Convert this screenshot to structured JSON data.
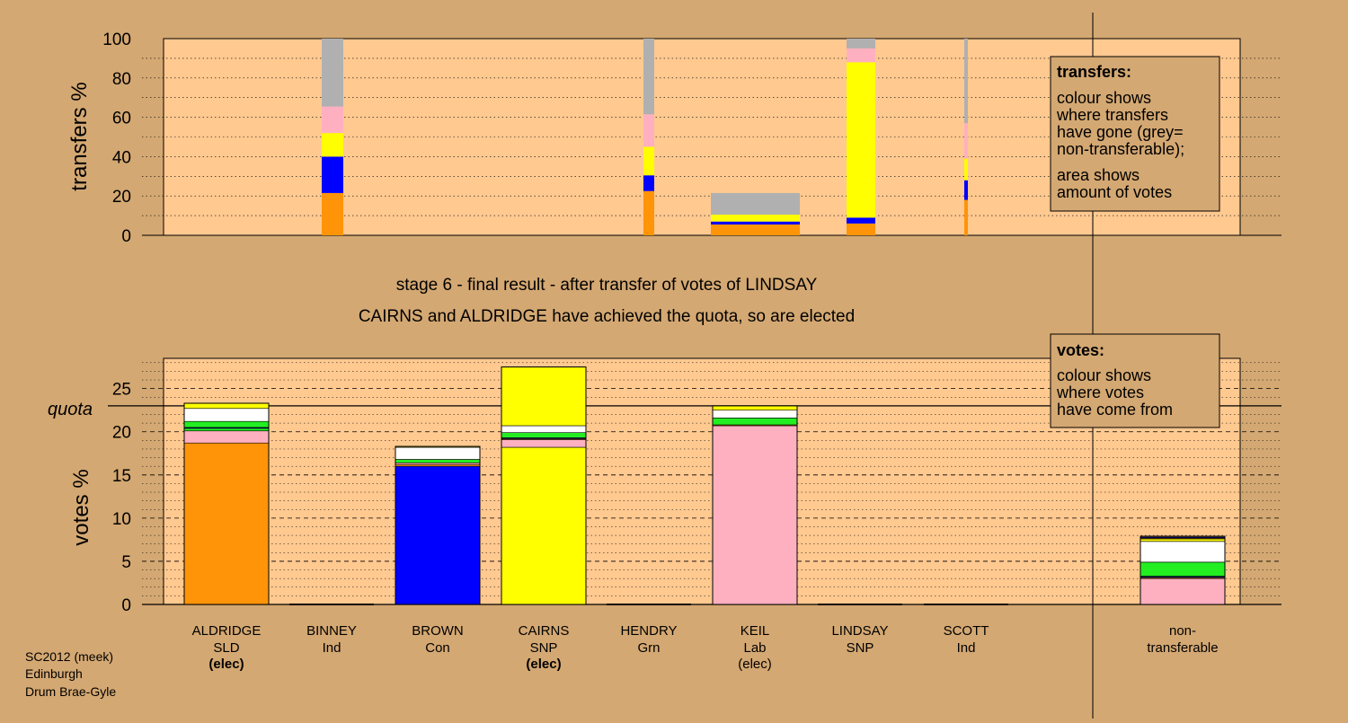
{
  "stage_title": "stage 6 - final result - after transfer of votes of LINDSAY",
  "stage_subtitle": "CAIRNS and ALDRIDGE have achieved the quota, so are elected",
  "footer": {
    "line1": "SC2012 (meek)",
    "line2": "Edinburgh",
    "line3": "Drum Brae-Gyle"
  },
  "legend_transfers": {
    "title": "transfers:",
    "text1": [
      "colour shows",
      "where transfers",
      "have gone (grey=",
      "non-transferable);"
    ],
    "text2": [
      "area shows",
      "amount of votes"
    ]
  },
  "legend_votes": {
    "title": "votes:",
    "text1": [
      "colour shows",
      "where votes",
      "have come from"
    ]
  },
  "colors": {
    "SLD": "#ff9408",
    "Con": "#0000ff",
    "SNP": "#ffff00",
    "Grn": "#22ee22",
    "Lab": "#ffb0c0",
    "Ind": "#ffffff",
    "nontransferable": "#b0b0b0",
    "panel": "#ffc990",
    "page": "#d4a872"
  },
  "chart_data": [
    {
      "type": "bar",
      "name": "transfers",
      "ylabel": "transfers %",
      "ylim": [
        0,
        100
      ],
      "yticks": [
        0,
        20,
        40,
        60,
        80,
        100
      ],
      "segment_order": [
        "SLD",
        "Con",
        "SNP",
        "Lab",
        "nontransferable"
      ],
      "bars": [
        {
          "candidate": "BINNEY",
          "width_share": 0.12,
          "segments": [
            21.5,
            18.5,
            12,
            13.5,
            34.5
          ]
        },
        {
          "candidate": "HENDRY",
          "width_share": 0.06,
          "segments": [
            22.5,
            8,
            14.5,
            16.5,
            38.5
          ]
        },
        {
          "candidate": "KEIL",
          "width_share": 0.46,
          "segments": [
            5.5,
            1.5,
            3.5,
            0,
            11
          ]
        },
        {
          "candidate": "CAIRNS",
          "width_share": 0.15,
          "segments": [
            6,
            3,
            79,
            7,
            5
          ]
        },
        {
          "candidate": "SCOTT",
          "width_share": 0.02,
          "segments": [
            18,
            10,
            11,
            18,
            43
          ]
        }
      ]
    },
    {
      "type": "bar",
      "name": "votes",
      "ylabel": "votes %",
      "ylim": [
        0,
        28.5
      ],
      "yticks": [
        0,
        5,
        10,
        15,
        20,
        25
      ],
      "quota": 23.0,
      "quota_label": "quota",
      "segment_order": [
        "Lab",
        "Grn",
        "Ind",
        "SNP",
        "SLD",
        "Con"
      ],
      "categories": [
        {
          "name": "ALDRIDGE",
          "party": "SLD",
          "note": "(elec)",
          "note_bold": true,
          "total": 23.3
        },
        {
          "name": "BINNEY",
          "party": "Ind",
          "note": "",
          "total": 0
        },
        {
          "name": "BROWN",
          "party": "Con",
          "note": "",
          "total": 18.3
        },
        {
          "name": "CAIRNS",
          "party": "SNP",
          "note": "(elec)",
          "note_bold": true,
          "total": 27.5
        },
        {
          "name": "HENDRY",
          "party": "Grn",
          "note": "",
          "total": 0
        },
        {
          "name": "KEIL",
          "party": "Lab",
          "note": "(elec)",
          "note_bold": false,
          "total": 23.0
        },
        {
          "name": "LINDSAY",
          "party": "SNP",
          "note": "",
          "total": 0
        },
        {
          "name": "SCOTT",
          "party": "Ind",
          "note": "",
          "total": 0
        },
        {
          "name": "non-",
          "party": "transferable",
          "note": "",
          "total": 7.9
        }
      ],
      "stacks": [
        [
          [
            "SLD",
            18.7
          ],
          [
            "Lab",
            1.4
          ],
          [
            "Grn",
            0.3
          ],
          [
            "Con",
            0.1
          ],
          [
            "Grn",
            0.7
          ],
          [
            "Ind",
            1.5
          ],
          [
            "SNP",
            0.6
          ]
        ],
        [],
        [
          [
            "Con",
            16.0
          ],
          [
            "SLD",
            0.2
          ],
          [
            "Lab",
            0.2
          ],
          [
            "Grn",
            0.4
          ],
          [
            "Ind",
            1.4
          ],
          [
            "SNP",
            0.1
          ]
        ],
        [
          [
            "SNP",
            18.2
          ],
          [
            "Lab",
            0.9
          ],
          [
            "SLD",
            0.1
          ],
          [
            "Con",
            0.1
          ],
          [
            "Grn",
            0.6
          ],
          [
            "Ind",
            0.8
          ],
          [
            "SNP",
            6.8
          ]
        ],
        [],
        [
          [
            "Lab",
            20.7
          ],
          [
            "SLD",
            0.1
          ],
          [
            "Grn",
            0.8
          ],
          [
            "Ind",
            0.9
          ],
          [
            "SNP",
            0.5
          ]
        ],
        [],
        [],
        [
          [
            "Lab",
            3.0
          ],
          [
            "SLD",
            0.1
          ],
          [
            "Con",
            0.1
          ],
          [
            "Grn",
            0.1
          ],
          [
            "Grn",
            1.6
          ],
          [
            "Ind",
            2.4
          ],
          [
            "SNP",
            0.3
          ],
          [
            "SLD",
            0.1
          ],
          [
            "Con",
            0.1
          ]
        ]
      ]
    }
  ]
}
